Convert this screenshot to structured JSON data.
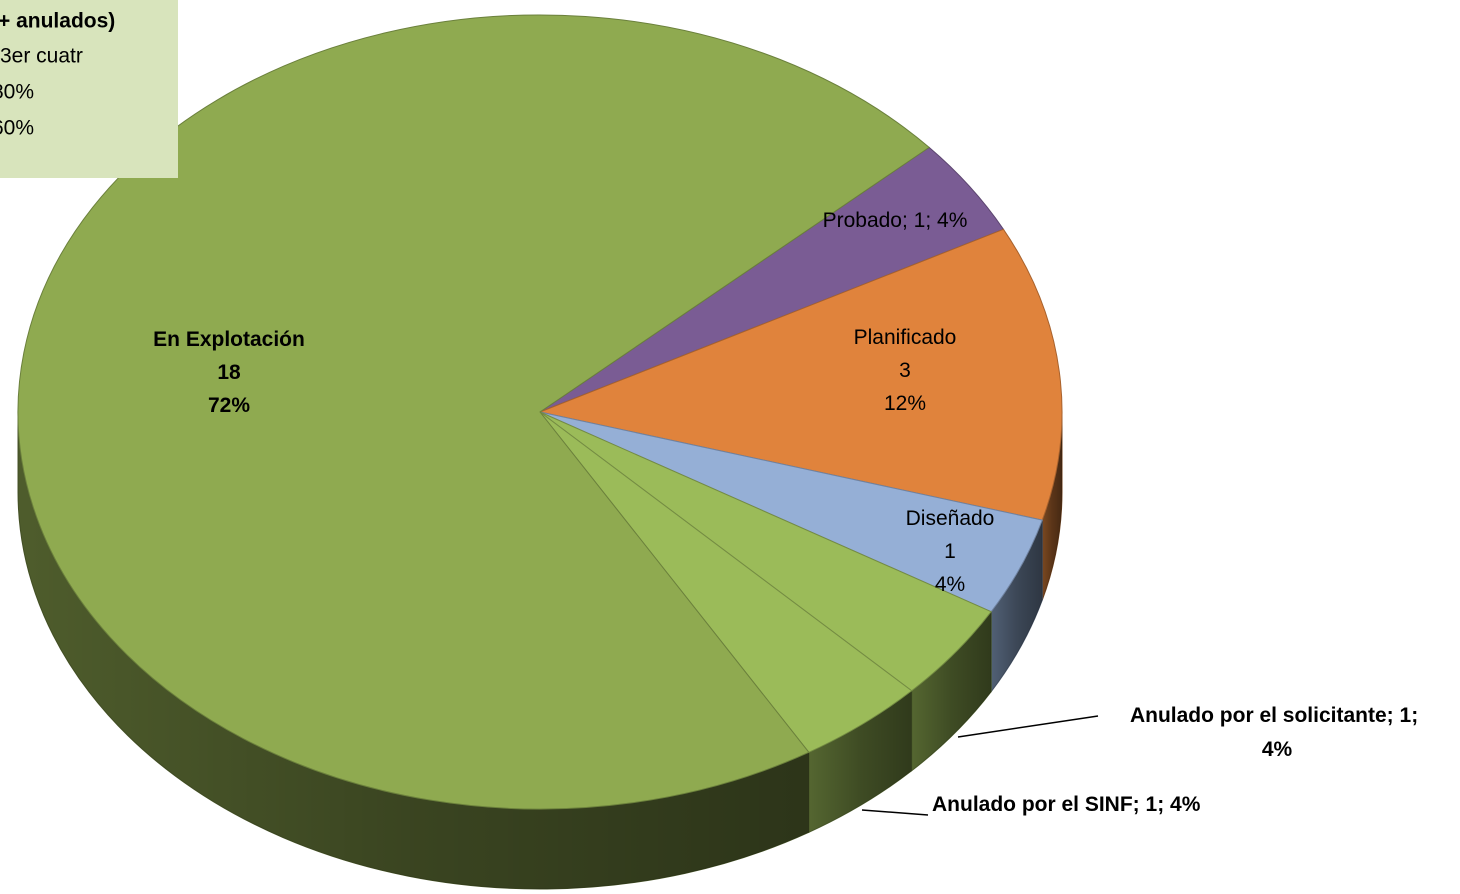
{
  "chart_data": {
    "type": "pie",
    "labels": [
      "Probado",
      "Planificado",
      "Diseñado",
      "Anulado por el solicitante",
      "Anulado por el SINF",
      "En Explotación"
    ],
    "values": [
      4,
      12,
      4,
      4,
      4,
      72
    ],
    "value_labels": [
      "4%",
      "12%",
      "4%",
      "4%",
      "4%",
      "72%"
    ],
    "counts": [
      "1",
      "3",
      "1",
      "1",
      "1",
      "18"
    ],
    "colors": [
      "#7a5c94",
      "#e0833c",
      "#95afd6",
      "#9bbb59",
      "#9bbb59",
      "#8faa50"
    ],
    "separator": "; ",
    "annotation_box": [
      "+ anulados)",
      "3er cuatr",
      "80%",
      "60%"
    ]
  }
}
